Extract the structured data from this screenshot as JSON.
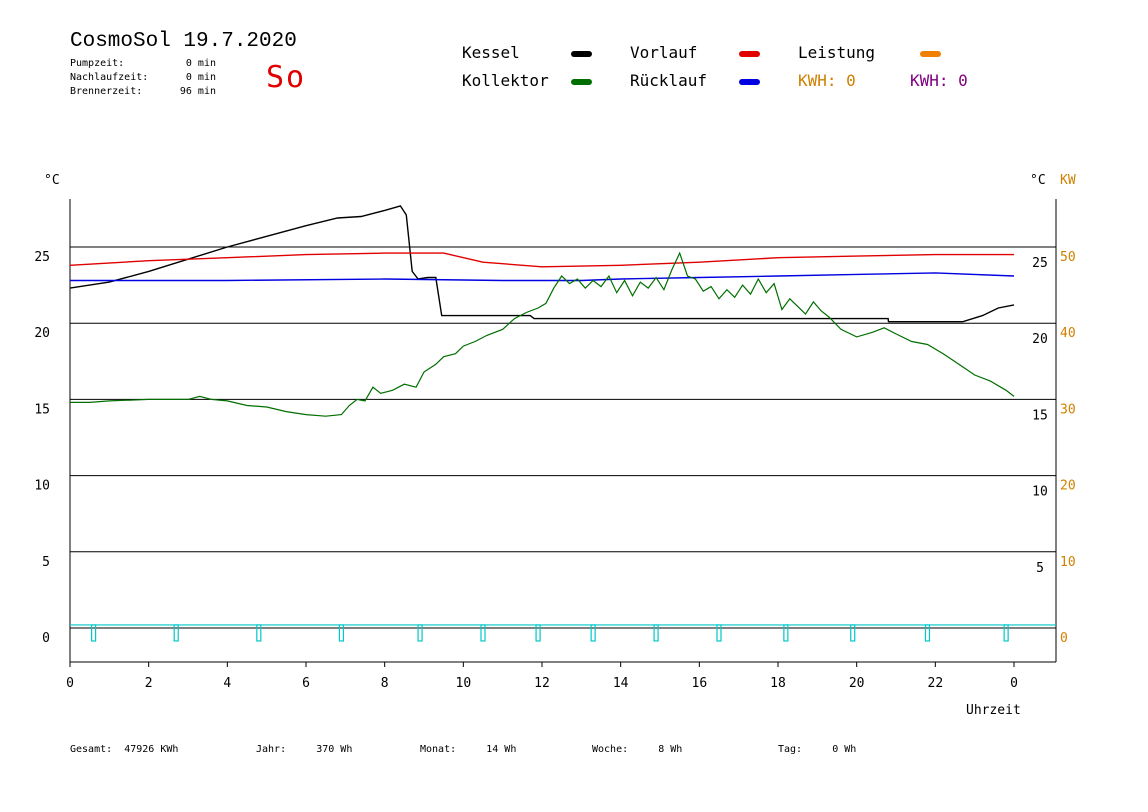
{
  "header": {
    "title": "CosmoSol 19.7.2020",
    "day": "So",
    "pumpzeit_label": "Pumpzeit:",
    "pumpzeit_value": "0 min",
    "nachlauf_label": "Nachlaufzeit:",
    "nachlauf_value": "0 min",
    "brenner_label": "Brennerzeit:",
    "brenner_value": "96 min"
  },
  "legend": {
    "kessel": "Kessel",
    "kollektor": "Kollektor",
    "vorlauf": "Vorlauf",
    "ruecklauf": "Rücklauf",
    "leistung": "Leistung",
    "kwh1": "KWH: 0",
    "kwh2": "KWH: 0"
  },
  "colors": {
    "kessel": "#000000",
    "kollektor": "#006e00",
    "vorlauf": "#e00000",
    "ruecklauf": "#0000e0",
    "leistung": "#f08000",
    "kwh1": "#d08000",
    "kwh2": "#800080",
    "pump": "#00c8c8",
    "axis_right2": "#d08000"
  },
  "footer": {
    "gesamt_label": "Gesamt:",
    "gesamt_value": "47926 KWh",
    "jahr_label": "Jahr:",
    "jahr_value": "370 Wh",
    "monat_label": "Monat:",
    "monat_value": "14 Wh",
    "woche_label": "Woche:",
    "woche_value": "8 Wh",
    "tag_label": "Tag:",
    "tag_value": "0 Wh"
  },
  "chart_data": {
    "type": "line",
    "xlabel": "Uhrzeit",
    "ylabel_left": "°C",
    "ylabel_right": "°C",
    "ylabel_right2": "KW",
    "x_ticks": [
      "0",
      "2",
      "4",
      "6",
      "8",
      "10",
      "12",
      "14",
      "16",
      "18",
      "20",
      "22",
      "0"
    ],
    "xlim": [
      0,
      24
    ],
    "y_left_ticks": [
      "0",
      "5",
      "10",
      "15",
      "20",
      "25"
    ],
    "y_right_ticks": [
      "5",
      "10",
      "15",
      "20",
      "25"
    ],
    "y_right2_ticks": [
      "0",
      "10",
      "20",
      "30",
      "40",
      "50"
    ],
    "ylim": [
      -2.2,
      28.5
    ],
    "grid": true,
    "series": [
      {
        "name": "Kessel",
        "color_key": "kessel",
        "points": [
          [
            0,
            22.3
          ],
          [
            1,
            22.7
          ],
          [
            2,
            23.4
          ],
          [
            3,
            24.2
          ],
          [
            4,
            25.0
          ],
          [
            5,
            25.7
          ],
          [
            6,
            26.4
          ],
          [
            6.8,
            26.9
          ],
          [
            7.4,
            27.0
          ],
          [
            8,
            27.4
          ],
          [
            8.4,
            27.7
          ],
          [
            8.55,
            27.1
          ],
          [
            8.7,
            23.4
          ],
          [
            8.85,
            22.9
          ],
          [
            9.1,
            23.0
          ],
          [
            9.3,
            23.0
          ],
          [
            9.45,
            20.5
          ],
          [
            11.7,
            20.5
          ],
          [
            11.8,
            20.3
          ],
          [
            20.8,
            20.3
          ],
          [
            20.81,
            20.1
          ],
          [
            22.7,
            20.1
          ],
          [
            23.2,
            20.5
          ],
          [
            23.6,
            21.0
          ],
          [
            24,
            21.2
          ]
        ]
      },
      {
        "name": "Vorlauf",
        "color_key": "vorlauf",
        "points": [
          [
            0,
            23.8
          ],
          [
            2,
            24.1
          ],
          [
            4,
            24.3
          ],
          [
            6,
            24.5
          ],
          [
            8,
            24.6
          ],
          [
            9.5,
            24.6
          ],
          [
            10.5,
            24.0
          ],
          [
            12,
            23.7
          ],
          [
            14,
            23.8
          ],
          [
            16,
            24.0
          ],
          [
            18,
            24.3
          ],
          [
            20,
            24.4
          ],
          [
            22,
            24.5
          ],
          [
            24,
            24.5
          ]
        ]
      },
      {
        "name": "Rücklauf",
        "color_key": "ruecklauf",
        "points": [
          [
            0,
            22.8
          ],
          [
            4,
            22.8
          ],
          [
            8,
            22.9
          ],
          [
            11,
            22.8
          ],
          [
            13,
            22.8
          ],
          [
            14,
            22.9
          ],
          [
            16,
            23.0
          ],
          [
            18,
            23.1
          ],
          [
            20,
            23.2
          ],
          [
            22,
            23.3
          ],
          [
            24,
            23.1
          ]
        ]
      },
      {
        "name": "Kollektor",
        "color_key": "kollektor",
        "points": [
          [
            0,
            14.8
          ],
          [
            0.5,
            14.8
          ],
          [
            1,
            14.9
          ],
          [
            2,
            15.0
          ],
          [
            3,
            15.0
          ],
          [
            3.3,
            15.2
          ],
          [
            3.6,
            15.0
          ],
          [
            4,
            14.9
          ],
          [
            4.5,
            14.6
          ],
          [
            5,
            14.5
          ],
          [
            5.5,
            14.2
          ],
          [
            6,
            14.0
          ],
          [
            6.5,
            13.9
          ],
          [
            6.9,
            14.0
          ],
          [
            7.1,
            14.6
          ],
          [
            7.3,
            15.0
          ],
          [
            7.5,
            14.9
          ],
          [
            7.7,
            15.8
          ],
          [
            7.9,
            15.4
          ],
          [
            8.2,
            15.6
          ],
          [
            8.5,
            16.0
          ],
          [
            8.8,
            15.8
          ],
          [
            9,
            16.8
          ],
          [
            9.3,
            17.3
          ],
          [
            9.5,
            17.8
          ],
          [
            9.8,
            18.0
          ],
          [
            10,
            18.5
          ],
          [
            10.3,
            18.8
          ],
          [
            10.6,
            19.2
          ],
          [
            11,
            19.6
          ],
          [
            11.3,
            20.3
          ],
          [
            11.6,
            20.7
          ],
          [
            11.9,
            21.0
          ],
          [
            12.1,
            21.3
          ],
          [
            12.3,
            22.3
          ],
          [
            12.5,
            23.1
          ],
          [
            12.7,
            22.6
          ],
          [
            12.9,
            22.9
          ],
          [
            13.1,
            22.3
          ],
          [
            13.3,
            22.8
          ],
          [
            13.5,
            22.4
          ],
          [
            13.7,
            23.1
          ],
          [
            13.9,
            22.0
          ],
          [
            14.1,
            22.8
          ],
          [
            14.3,
            21.8
          ],
          [
            14.5,
            22.7
          ],
          [
            14.7,
            22.3
          ],
          [
            14.9,
            23.0
          ],
          [
            15.1,
            22.2
          ],
          [
            15.3,
            23.5
          ],
          [
            15.5,
            24.6
          ],
          [
            15.7,
            23.1
          ],
          [
            15.9,
            22.9
          ],
          [
            16.1,
            22.1
          ],
          [
            16.3,
            22.4
          ],
          [
            16.5,
            21.6
          ],
          [
            16.7,
            22.2
          ],
          [
            16.9,
            21.7
          ],
          [
            17.1,
            22.5
          ],
          [
            17.3,
            21.9
          ],
          [
            17.5,
            22.9
          ],
          [
            17.7,
            22.0
          ],
          [
            17.9,
            22.6
          ],
          [
            18.1,
            20.9
          ],
          [
            18.3,
            21.6
          ],
          [
            18.5,
            21.1
          ],
          [
            18.7,
            20.6
          ],
          [
            18.9,
            21.4
          ],
          [
            19.1,
            20.8
          ],
          [
            19.3,
            20.4
          ],
          [
            19.6,
            19.6
          ],
          [
            20,
            19.1
          ],
          [
            20.4,
            19.4
          ],
          [
            20.7,
            19.7
          ],
          [
            21,
            19.3
          ],
          [
            21.4,
            18.8
          ],
          [
            21.8,
            18.6
          ],
          [
            22.2,
            18.0
          ],
          [
            22.6,
            17.3
          ],
          [
            23,
            16.6
          ],
          [
            23.4,
            16.2
          ],
          [
            23.8,
            15.6
          ],
          [
            24,
            15.2
          ]
        ]
      }
    ],
    "pump_events": [
      0.6,
      2.7,
      4.8,
      6.9,
      8.9,
      10.5,
      11.9,
      13.3,
      14.9,
      16.5,
      18.2,
      19.9,
      21.8,
      23.8
    ],
    "pump_baseline": 0.2
  }
}
